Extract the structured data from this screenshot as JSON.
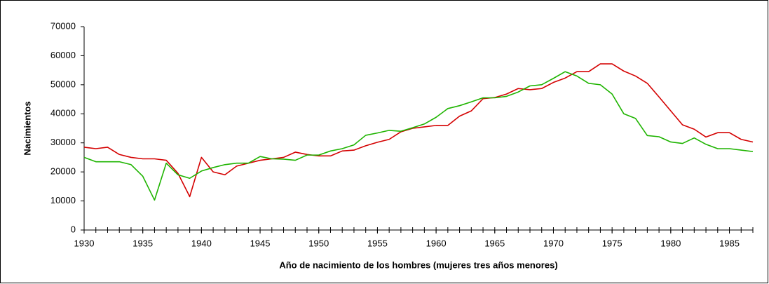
{
  "chart_data": {
    "type": "line",
    "x_label": "Año de nacimiento de los hombres (mujeres tres años menores)",
    "y_label": "Nacimientos",
    "x": [
      1930,
      1931,
      1932,
      1933,
      1934,
      1935,
      1936,
      1937,
      1938,
      1939,
      1940,
      1941,
      1942,
      1943,
      1944,
      1945,
      1946,
      1947,
      1948,
      1949,
      1950,
      1951,
      1952,
      1953,
      1954,
      1955,
      1956,
      1957,
      1958,
      1959,
      1960,
      1961,
      1962,
      1963,
      1964,
      1965,
      1966,
      1967,
      1968,
      1969,
      1970,
      1971,
      1972,
      1973,
      1974,
      1975,
      1976,
      1977,
      1978,
      1979,
      1980,
      1981,
      1982,
      1983,
      1984,
      1985,
      1986,
      1987
    ],
    "series": [
      {
        "color": "#d40000",
        "values": [
          28500,
          28000,
          28500,
          26000,
          25000,
          24500,
          24500,
          24000,
          19500,
          11500,
          25000,
          20000,
          19000,
          22000,
          23000,
          24000,
          24500,
          25000,
          26800,
          26000,
          25500,
          25500,
          27200,
          27500,
          29000,
          30200,
          31200,
          33800,
          35000,
          35500,
          36000,
          36000,
          39200,
          41000,
          45200,
          45600,
          46800,
          48700,
          48300,
          48700,
          50800,
          52300,
          54500,
          54500,
          57200,
          57200,
          54700,
          53000,
          50500,
          45800,
          41000,
          36200,
          34700,
          32000,
          33500,
          33500,
          31200,
          30300
        ]
      },
      {
        "color": "#1eb400",
        "values": [
          25000,
          23500,
          23500,
          23500,
          22500,
          18500,
          10300,
          23000,
          19000,
          17800,
          20300,
          21500,
          22500,
          23000,
          23000,
          25300,
          24500,
          24400,
          24000,
          25800,
          25800,
          27200,
          28000,
          29300,
          32600,
          33400,
          34300,
          34000,
          35200,
          36500,
          38800,
          41800,
          42800,
          44100,
          45500,
          45500,
          46000,
          47500,
          49600,
          50000,
          52200,
          54500,
          53000,
          50500,
          50000,
          46800,
          40000,
          38400,
          32500,
          32100,
          30300,
          29800,
          31700,
          29500,
          28000,
          28000,
          27500,
          27000
        ]
      }
    ],
    "xlim": [
      1930,
      1987
    ],
    "xticks": [
      1930,
      1935,
      1940,
      1945,
      1950,
      1955,
      1960,
      1965,
      1970,
      1975,
      1980,
      1985
    ],
    "ylim": [
      0,
      70000
    ],
    "yticks": [
      0,
      10000,
      20000,
      30000,
      40000,
      50000,
      60000,
      70000
    ],
    "grid": false
  }
}
